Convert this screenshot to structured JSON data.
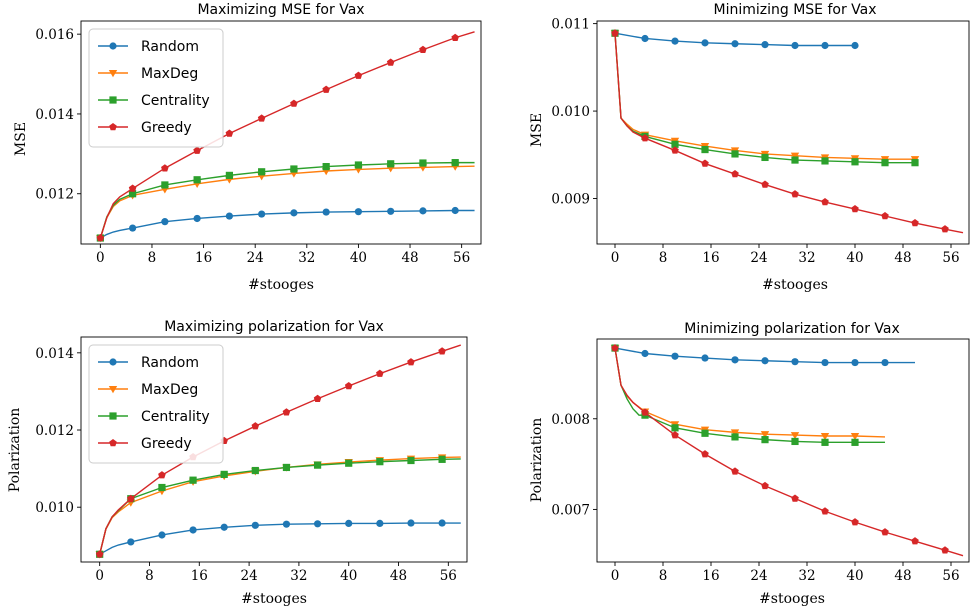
{
  "colors": {
    "Random": "#1f77b4",
    "MaxDeg": "#ff7f0e",
    "Centrality": "#2ca02c",
    "Greedy": "#d62728"
  },
  "chart_data": [
    {
      "type": "line",
      "title": "Maximizing MSE for Vax",
      "xlabel": "#stooges",
      "ylabel": "MSE",
      "xlim": [
        -3,
        59
      ],
      "ylim": [
        0.01074,
        0.01633
      ],
      "xticks": [
        0,
        8,
        16,
        24,
        32,
        40,
        48,
        56
      ],
      "yticks": [
        0.012,
        0.014,
        0.016
      ],
      "ytick_labels": [
        "0.012",
        "0.014",
        "0.016"
      ],
      "legend": "top-left",
      "series": [
        {
          "name": "Random",
          "color": "#1f77b4",
          "marker": "circle",
          "x": [
            0,
            1,
            2,
            3,
            5,
            10,
            15,
            20,
            25,
            30,
            35,
            40,
            45,
            50,
            55,
            58
          ],
          "y": [
            0.01089,
            0.01098,
            0.01104,
            0.01108,
            0.01114,
            0.0113,
            0.01138,
            0.01144,
            0.01149,
            0.01152,
            0.01154,
            0.01155,
            0.01156,
            0.01157,
            0.01158,
            0.01158
          ],
          "markers_at": [
            0,
            5,
            10,
            15,
            20,
            25,
            30,
            35,
            40,
            45,
            50,
            55
          ]
        },
        {
          "name": "MaxDeg",
          "color": "#ff7f0e",
          "marker": "triangle-down",
          "x": [
            0,
            1,
            2,
            3,
            5,
            10,
            15,
            20,
            25,
            30,
            35,
            40,
            45,
            50,
            55,
            58
          ],
          "y": [
            0.01089,
            0.0114,
            0.01168,
            0.01182,
            0.01196,
            0.01211,
            0.01225,
            0.01236,
            0.01244,
            0.01251,
            0.01257,
            0.01261,
            0.01264,
            0.01266,
            0.01268,
            0.01269
          ],
          "markers_at": [
            0,
            5,
            10,
            15,
            20,
            25,
            30,
            35,
            40,
            45,
            50,
            55
          ]
        },
        {
          "name": "Centrality",
          "color": "#2ca02c",
          "marker": "square",
          "x": [
            0,
            1,
            2,
            3,
            5,
            10,
            15,
            20,
            25,
            30,
            35,
            40,
            45,
            50,
            55,
            58
          ],
          "y": [
            0.01089,
            0.01142,
            0.01171,
            0.01186,
            0.012,
            0.01222,
            0.01235,
            0.01246,
            0.01255,
            0.01262,
            0.01268,
            0.01272,
            0.01275,
            0.01277,
            0.01278,
            0.01278
          ],
          "markers_at": [
            0,
            5,
            10,
            15,
            20,
            25,
            30,
            35,
            40,
            45,
            50,
            55
          ]
        },
        {
          "name": "Greedy",
          "color": "#d62728",
          "marker": "pentagon",
          "x": [
            0,
            1,
            2,
            3,
            5,
            10,
            15,
            20,
            25,
            30,
            35,
            40,
            45,
            50,
            55,
            58
          ],
          "y": [
            0.01089,
            0.0114,
            0.01175,
            0.01192,
            0.01213,
            0.01264,
            0.01308,
            0.01351,
            0.01389,
            0.01426,
            0.01461,
            0.01496,
            0.01529,
            0.01561,
            0.01591,
            0.01606
          ],
          "markers_at": [
            0,
            5,
            10,
            15,
            20,
            25,
            30,
            35,
            40,
            45,
            50,
            55
          ]
        }
      ]
    },
    {
      "type": "line",
      "title": "Minimizing MSE for Vax",
      "xlabel": "#stooges",
      "ylabel": "MSE",
      "xlim": [
        -3,
        59
      ],
      "ylim": [
        0.00848,
        0.01103
      ],
      "xticks": [
        0,
        8,
        16,
        24,
        32,
        40,
        48,
        56
      ],
      "yticks": [
        0.009,
        0.01,
        0.011
      ],
      "ytick_labels": [
        "0.009",
        "0.010",
        "0.011"
      ],
      "legend": "none",
      "series": [
        {
          "name": "Random",
          "color": "#1f77b4",
          "marker": "circle",
          "x": [
            0,
            5,
            10,
            15,
            20,
            25,
            30,
            35,
            40
          ],
          "y": [
            0.01089,
            0.01083,
            0.0108,
            0.01078,
            0.01077,
            0.01076,
            0.01075,
            0.01075,
            0.01075
          ],
          "markers_at": [
            0,
            5,
            10,
            15,
            20,
            25,
            30,
            35,
            40
          ]
        },
        {
          "name": "MaxDeg",
          "color": "#ff7f0e",
          "marker": "triangle-down",
          "x": [
            0,
            1,
            2,
            3,
            5,
            10,
            15,
            20,
            25,
            30,
            35,
            40,
            45,
            50
          ],
          "y": [
            0.01089,
            0.00992,
            0.00985,
            0.00979,
            0.00973,
            0.00966,
            0.0096,
            0.00955,
            0.00951,
            0.00949,
            0.00947,
            0.00946,
            0.00945,
            0.00945
          ],
          "markers_at": [
            0,
            5,
            10,
            15,
            20,
            25,
            30,
            35,
            40,
            45,
            50
          ]
        },
        {
          "name": "Centrality",
          "color": "#2ca02c",
          "marker": "square",
          "x": [
            0,
            1,
            2,
            3,
            5,
            10,
            15,
            20,
            25,
            30,
            35,
            40,
            45,
            50
          ],
          "y": [
            0.01089,
            0.00992,
            0.00983,
            0.00977,
            0.00971,
            0.00962,
            0.00956,
            0.00951,
            0.00947,
            0.00944,
            0.00943,
            0.00942,
            0.00941,
            0.00941
          ],
          "markers_at": [
            0,
            5,
            10,
            15,
            20,
            25,
            30,
            35,
            40,
            45,
            50
          ]
        },
        {
          "name": "Greedy",
          "color": "#d62728",
          "marker": "pentagon",
          "x": [
            0,
            1,
            2,
            3,
            5,
            10,
            15,
            20,
            25,
            30,
            35,
            40,
            45,
            50,
            55,
            58
          ],
          "y": [
            0.01089,
            0.00992,
            0.00983,
            0.00976,
            0.00969,
            0.00955,
            0.0094,
            0.00928,
            0.00916,
            0.00905,
            0.00896,
            0.00888,
            0.0088,
            0.00872,
            0.00865,
            0.00861
          ],
          "markers_at": [
            0,
            5,
            10,
            15,
            20,
            25,
            30,
            35,
            40,
            45,
            50,
            55
          ]
        }
      ]
    },
    {
      "type": "line",
      "title": "Maximizing polarization for Vax",
      "xlabel": "#stooges",
      "ylabel": "Polarization",
      "xlim": [
        -3,
        59
      ],
      "ylim": [
        0.00858,
        0.01441
      ],
      "xticks": [
        0,
        8,
        16,
        24,
        32,
        40,
        48,
        56
      ],
      "yticks": [
        0.01,
        0.012,
        0.014
      ],
      "ytick_labels": [
        "0.010",
        "0.012",
        "0.014"
      ],
      "legend": "top-left",
      "series": [
        {
          "name": "Random",
          "color": "#1f77b4",
          "marker": "circle",
          "x": [
            0,
            1,
            2,
            3,
            5,
            10,
            15,
            20,
            25,
            30,
            35,
            40,
            45,
            50,
            55,
            58
          ],
          "y": [
            0.00878,
            0.00887,
            0.00896,
            0.00902,
            0.0091,
            0.00928,
            0.00941,
            0.00948,
            0.00953,
            0.00956,
            0.00957,
            0.00958,
            0.00958,
            0.00959,
            0.00959,
            0.00959
          ],
          "markers_at": [
            0,
            5,
            10,
            15,
            20,
            25,
            30,
            35,
            40,
            45,
            50,
            55
          ]
        },
        {
          "name": "MaxDeg",
          "color": "#ff7f0e",
          "marker": "triangle-down",
          "x": [
            0,
            1,
            2,
            3,
            5,
            10,
            15,
            20,
            25,
            30,
            35,
            40,
            45,
            50,
            55,
            58
          ],
          "y": [
            0.00878,
            0.00943,
            0.00973,
            0.00988,
            0.01012,
            0.01042,
            0.01066,
            0.01081,
            0.01093,
            0.01103,
            0.01111,
            0.01117,
            0.01122,
            0.01126,
            0.01129,
            0.0113
          ],
          "markers_at": [
            0,
            5,
            10,
            15,
            20,
            25,
            30,
            35,
            40,
            45,
            50,
            55
          ]
        },
        {
          "name": "Centrality",
          "color": "#2ca02c",
          "marker": "square",
          "x": [
            0,
            1,
            2,
            3,
            5,
            10,
            15,
            20,
            25,
            30,
            35,
            40,
            45,
            50,
            55,
            58
          ],
          "y": [
            0.00878,
            0.00944,
            0.00975,
            0.00991,
            0.01022,
            0.01051,
            0.0107,
            0.01085,
            0.01095,
            0.01103,
            0.01109,
            0.01114,
            0.01118,
            0.01121,
            0.01124,
            0.01125
          ],
          "markers_at": [
            0,
            5,
            10,
            15,
            20,
            25,
            30,
            35,
            40,
            45,
            50,
            55
          ]
        },
        {
          "name": "Greedy",
          "color": "#d62728",
          "marker": "pentagon",
          "x": [
            0,
            1,
            2,
            3,
            5,
            10,
            15,
            20,
            25,
            30,
            35,
            40,
            45,
            50,
            55,
            58
          ],
          "y": [
            0.00878,
            0.00944,
            0.00975,
            0.00993,
            0.01022,
            0.01083,
            0.0113,
            0.01172,
            0.0121,
            0.01246,
            0.01281,
            0.01314,
            0.01346,
            0.01376,
            0.01404,
            0.0142
          ],
          "markers_at": [
            0,
            5,
            10,
            15,
            20,
            25,
            30,
            35,
            40,
            45,
            50,
            55
          ]
        }
      ]
    },
    {
      "type": "line",
      "title": "Minimizing polarization for Vax",
      "xlabel": "#stooges",
      "ylabel": "Polarization",
      "xlim": [
        -3,
        59
      ],
      "ylim": [
        0.00642,
        0.00888
      ],
      "xticks": [
        0,
        8,
        16,
        24,
        32,
        40,
        48,
        56
      ],
      "yticks": [
        0.007,
        0.008
      ],
      "ytick_labels": [
        "0.007",
        "0.008"
      ],
      "legend": "none",
      "series": [
        {
          "name": "Random",
          "color": "#1f77b4",
          "marker": "circle",
          "x": [
            0,
            5,
            10,
            15,
            20,
            25,
            30,
            35,
            40,
            45,
            50
          ],
          "y": [
            0.00878,
            0.00872,
            0.00869,
            0.00867,
            0.00865,
            0.00864,
            0.00863,
            0.00862,
            0.00862,
            0.00862,
            0.00862
          ],
          "markers_at": [
            0,
            5,
            10,
            15,
            20,
            25,
            30,
            35,
            40,
            45
          ]
        },
        {
          "name": "MaxDeg",
          "color": "#ff7f0e",
          "marker": "triangle-down",
          "x": [
            0,
            1,
            2,
            3,
            5,
            10,
            15,
            20,
            25,
            30,
            35,
            40,
            45
          ],
          "y": [
            0.00878,
            0.00837,
            0.00825,
            0.00818,
            0.00808,
            0.00794,
            0.00788,
            0.00785,
            0.00783,
            0.00782,
            0.00781,
            0.00781,
            0.0078
          ],
          "markers_at": [
            0,
            5,
            10,
            15,
            20,
            25,
            30,
            35,
            40
          ]
        },
        {
          "name": "Centrality",
          "color": "#2ca02c",
          "marker": "square",
          "x": [
            0,
            1,
            2,
            3,
            4,
            5,
            10,
            15,
            20,
            25,
            30,
            35,
            40,
            45
          ],
          "y": [
            0.00878,
            0.00837,
            0.00822,
            0.00811,
            0.00804,
            0.00804,
            0.0079,
            0.00784,
            0.0078,
            0.00777,
            0.00775,
            0.00774,
            0.00774,
            0.00774
          ],
          "markers_at": [
            0,
            5,
            10,
            15,
            20,
            25,
            30,
            35,
            40
          ]
        },
        {
          "name": "Greedy",
          "color": "#d62728",
          "marker": "pentagon",
          "x": [
            0,
            1,
            2,
            3,
            5,
            10,
            15,
            20,
            25,
            30,
            35,
            40,
            45,
            50,
            55,
            58
          ],
          "y": [
            0.00878,
            0.00837,
            0.00826,
            0.00818,
            0.00807,
            0.00782,
            0.00761,
            0.00742,
            0.00726,
            0.00712,
            0.00698,
            0.00686,
            0.00675,
            0.00665,
            0.00655,
            0.00649
          ],
          "markers_at": [
            0,
            5,
            10,
            15,
            20,
            25,
            30,
            35,
            40,
            45,
            50,
            55
          ]
        }
      ]
    }
  ]
}
